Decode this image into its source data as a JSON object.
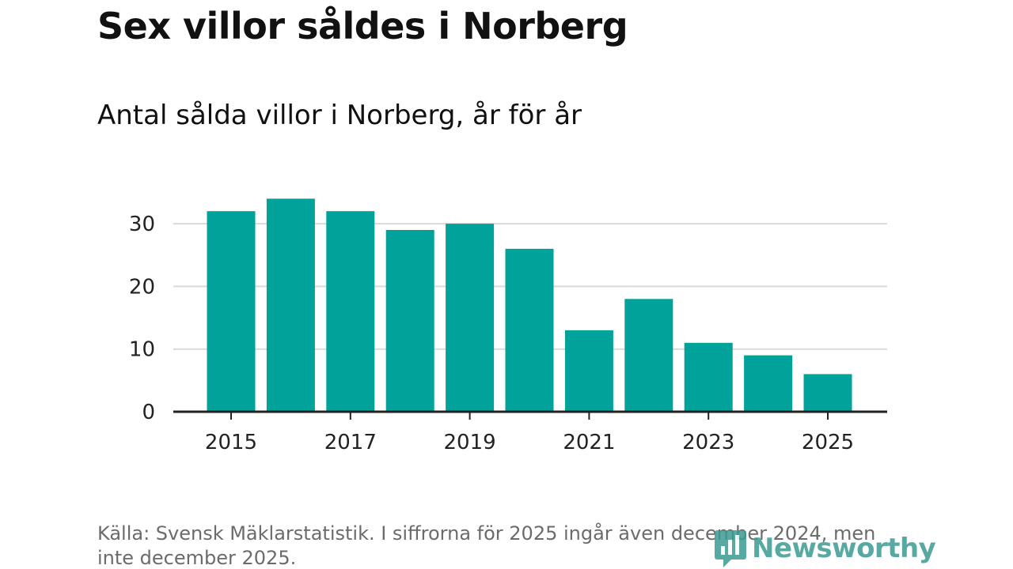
{
  "title": "Sex villor såldes i Norberg",
  "subtitle": "Antal sålda villor i Norberg, år för år",
  "source": "Källa: Svensk Mäklarstatistik. I siffrorna för 2025 ingår även december 2024, men inte december 2025.",
  "logo": {
    "text": "Newsworthy",
    "icon": "newsworthy-logo-icon"
  },
  "colors": {
    "bar": "#00a29a",
    "grid": "#d9d9d9",
    "axis": "#222222",
    "logo": "#3d9b94"
  },
  "chart_data": {
    "type": "bar",
    "title": "Antal sålda villor i Norberg, år för år",
    "categories": [
      "2015",
      "2016",
      "2017",
      "2018",
      "2019",
      "2020",
      "2021",
      "2022",
      "2023",
      "2024",
      "2025"
    ],
    "values": [
      32,
      34,
      32,
      29,
      30,
      26,
      13,
      18,
      11,
      9,
      6
    ],
    "x_tick_labels": [
      "2015",
      "2017",
      "2019",
      "2021",
      "2023",
      "2025"
    ],
    "y_ticks": [
      0,
      10,
      20,
      30
    ],
    "ylim": [
      0,
      34
    ],
    "xlabel": "",
    "ylabel": "",
    "grid": true
  }
}
